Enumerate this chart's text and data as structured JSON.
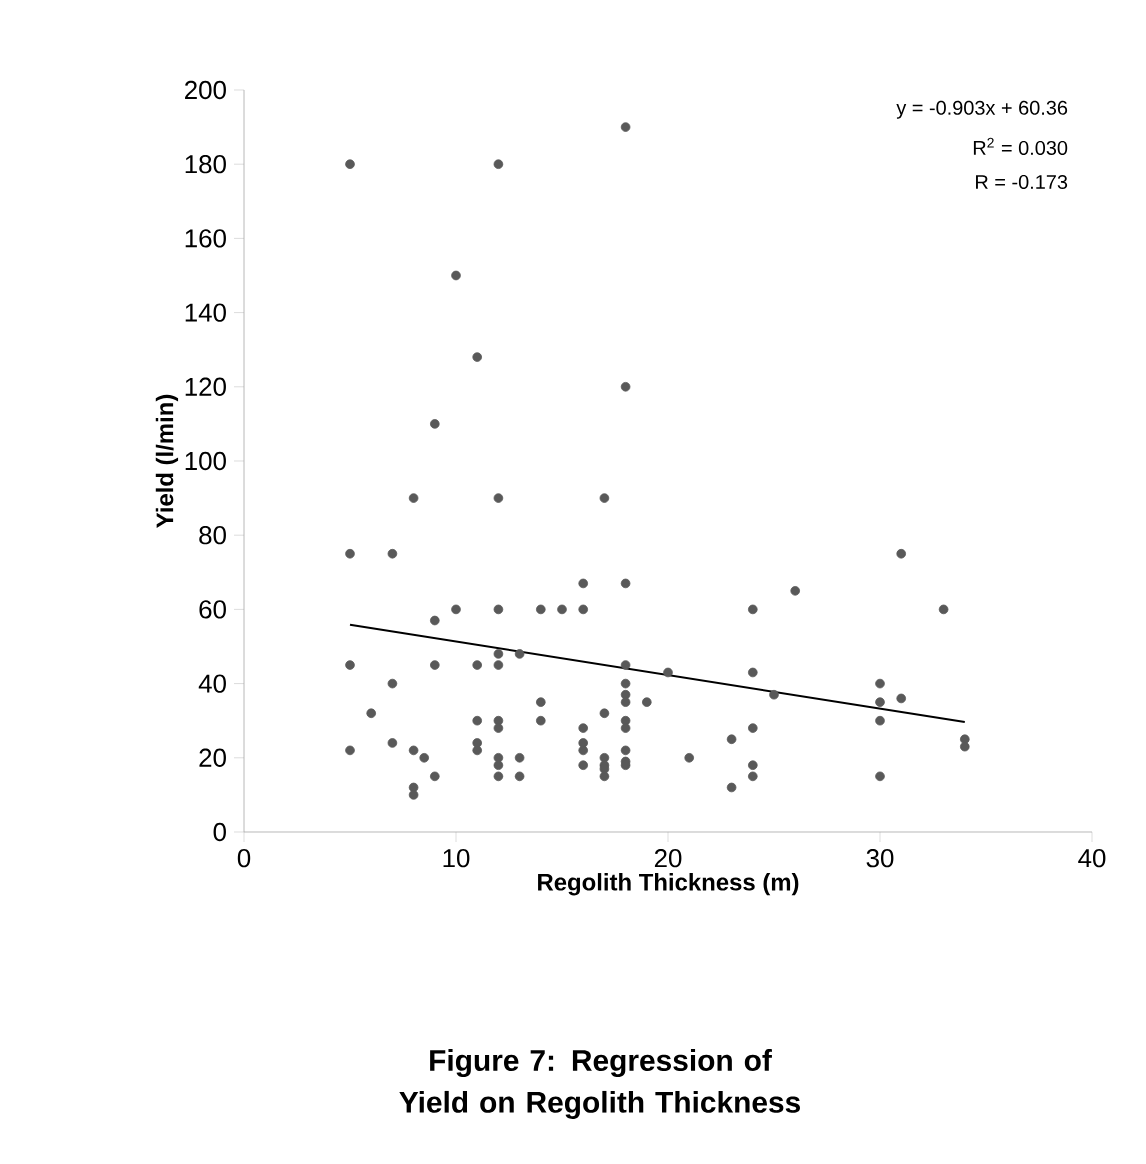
{
  "chart_data": {
    "type": "scatter",
    "title": "Figure 7: Regression of Yield on Regolith Thickness",
    "xlabel": "Regolith Thickness (m)",
    "ylabel": "Yield (l/min)",
    "annotations": [
      "y = -0.903x + 60.36",
      "R$^{2}$ = 0.030",
      "R = -0.173"
    ],
    "xlim": [
      0,
      40
    ],
    "xticks": [
      0,
      10,
      20,
      30,
      40
    ],
    "ylim": [
      0,
      200
    ],
    "yticks": [
      0,
      20,
      40,
      60,
      80,
      100,
      120,
      140,
      160,
      180,
      200
    ],
    "marker": "circle",
    "series": [
      {
        "color": "#595959",
        "x": [
          5,
          5,
          5,
          5,
          6,
          7,
          7,
          7,
          8,
          8,
          8,
          8,
          8.5,
          9,
          9,
          9,
          9,
          10,
          10,
          11,
          11,
          11,
          11,
          11,
          12,
          12,
          12,
          12,
          12,
          12,
          12,
          12,
          12,
          12,
          13,
          13,
          13,
          14,
          14,
          14,
          15,
          16,
          16,
          16,
          16,
          16,
          16,
          17,
          17,
          17,
          17,
          17,
          17,
          18,
          18,
          18,
          18,
          18,
          18,
          18,
          18,
          18,
          18,
          18,
          18,
          19,
          20,
          21,
          23,
          23,
          24,
          24,
          24,
          24,
          24,
          25,
          26,
          30,
          30,
          30,
          30,
          31,
          31,
          33,
          34,
          34
        ],
        "values": [
          180,
          75,
          45,
          22,
          32,
          75,
          40,
          24,
          90,
          22,
          12,
          10,
          20,
          110,
          57,
          45,
          15,
          150,
          60,
          128,
          45,
          30,
          24,
          22,
          180,
          90,
          60,
          48,
          45,
          30,
          28,
          20,
          18,
          15,
          48,
          20,
          15,
          60,
          35,
          30,
          60,
          67,
          60,
          28,
          24,
          22,
          18,
          90,
          32,
          20,
          18,
          15,
          17,
          190,
          120,
          67,
          45,
          40,
          37,
          35,
          30,
          28,
          22,
          19,
          18,
          35,
          43,
          20,
          25,
          12,
          60,
          43,
          28,
          18,
          15,
          37,
          65,
          40,
          35,
          30,
          15,
          75,
          36,
          60,
          25,
          23
        ]
      },
      {
        "type": "line",
        "color": "#000000",
        "marker": "none",
        "x": [
          5,
          34
        ],
        "values": [
          55.85,
          29.66
        ]
      }
    ]
  }
}
